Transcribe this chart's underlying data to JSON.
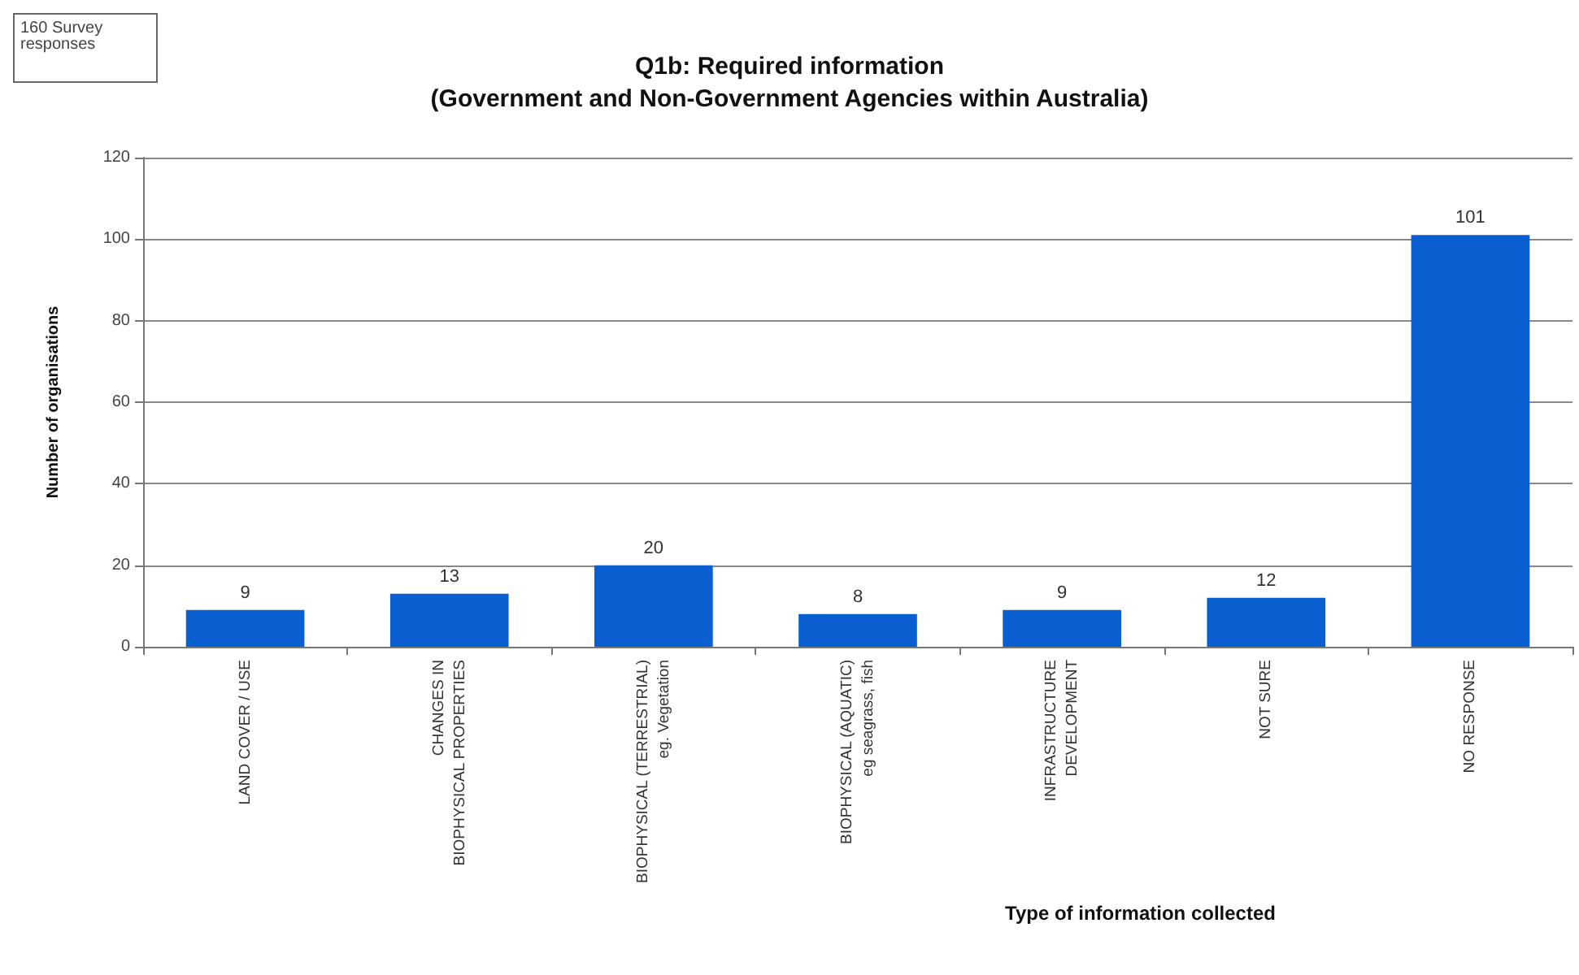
{
  "chart_data": {
    "type": "bar",
    "title": "Q1b: Required information\n(Government and Non-Government Agencies within Australia)",
    "xlabel": "Type of information collected",
    "ylabel": "Number of organisations",
    "categories": [
      "LAND COVER / USE",
      "CHANGES IN\nBIOPHYSICAL PROPERTIES",
      "BIOPHYSICAL (TERRESTRIAL)\neg. Vegetation",
      "BIOPHYSICAL (AQUATIC)\neg seagrass, fish",
      "INFRASTRUCTURE\nDEVELOPMENT",
      "NOT SURE",
      "NO RESPONSE"
    ],
    "values": [
      9,
      13,
      20,
      8,
      9,
      12,
      101
    ],
    "color": "#0a5fd0",
    "ylim": [
      0,
      120
    ],
    "yticks": [
      0,
      20,
      40,
      60,
      80,
      100,
      120
    ],
    "grid": "y",
    "data_labels": true,
    "annotations": [
      "160 Survey\nresponses"
    ]
  }
}
